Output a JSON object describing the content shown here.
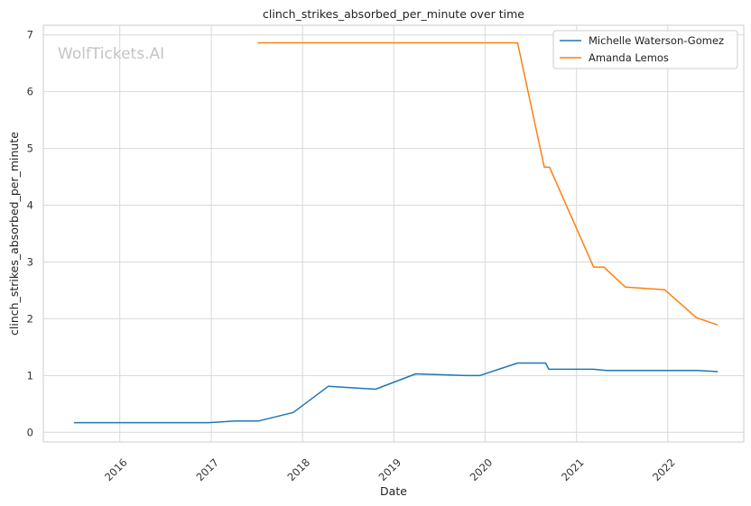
{
  "chart_data": {
    "type": "line",
    "title": "clinch_strikes_absorbed_per_minute over time",
    "xlabel": "Date",
    "ylabel": "clinch_strikes_absorbed_per_minute",
    "watermark": "WolfTickets.AI",
    "xlim": [
      "2015-03-01",
      "2022-11-01"
    ],
    "ylim": [
      -0.17,
      7.17
    ],
    "x_ticks": [
      "2016-01-01",
      "2017-01-01",
      "2018-01-01",
      "2019-01-01",
      "2020-01-01",
      "2021-01-01",
      "2022-01-01"
    ],
    "x_tick_labels": [
      "2016",
      "2017",
      "2018",
      "2019",
      "2020",
      "2021",
      "2022"
    ],
    "y_ticks": [
      0,
      1,
      2,
      3,
      4,
      5,
      6,
      7
    ],
    "y_tick_labels": [
      "0",
      "1",
      "2",
      "3",
      "4",
      "5",
      "6",
      "7"
    ],
    "grid": true,
    "legend_position": "top-right",
    "series": [
      {
        "name": "Michelle Waterson-Gomez",
        "color": "#1f77b4",
        "x": [
          "2015-07-01",
          "2016-12-20",
          "2017-04-10",
          "2017-07-10",
          "2017-11-25",
          "2018-04-14",
          "2018-10-20",
          "2019-03-30",
          "2019-10-20",
          "2019-12-10",
          "2020-05-10",
          "2020-08-30",
          "2020-09-12",
          "2021-03-10",
          "2021-05-01",
          "2022-01-01",
          "2022-04-30",
          "2022-07-20"
        ],
        "values": [
          0.17,
          0.17,
          0.2,
          0.2,
          0.35,
          0.81,
          0.76,
          1.03,
          1.0,
          1.0,
          1.22,
          1.22,
          1.11,
          1.11,
          1.09,
          1.09,
          1.09,
          1.07
        ]
      },
      {
        "name": "Amanda Lemos",
        "color": "#ff7f0e",
        "x": [
          "2017-07-05",
          "2020-05-10",
          "2020-08-25",
          "2020-09-15",
          "2021-03-10",
          "2021-04-20",
          "2021-07-15",
          "2021-12-20",
          "2022-04-25",
          "2022-07-20"
        ],
        "values": [
          6.86,
          6.86,
          4.67,
          4.67,
          2.91,
          2.91,
          2.56,
          2.51,
          2.02,
          1.89
        ]
      }
    ]
  }
}
